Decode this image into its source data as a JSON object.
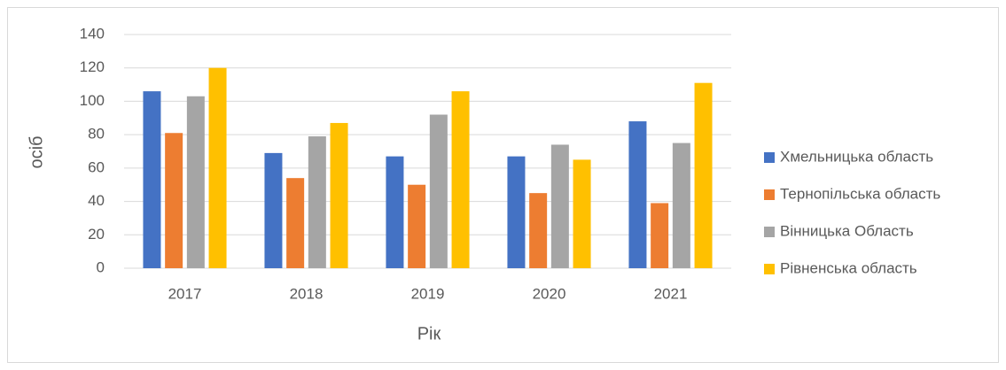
{
  "chart_data": {
    "type": "bar",
    "xlabel": "Рік",
    "ylabel": "осіб",
    "categories": [
      "2017",
      "2018",
      "2019",
      "2020",
      "2021"
    ],
    "series": [
      {
        "name": "Хмельницька область",
        "color": "#4472c4",
        "values": [
          106,
          69,
          67,
          67,
          88
        ]
      },
      {
        "name": "Тернопільська область",
        "color": "#ed7d31",
        "values": [
          81,
          54,
          50,
          45,
          39
        ]
      },
      {
        "name": "Вінницька Область",
        "color": "#a5a5a5",
        "values": [
          103,
          79,
          92,
          74,
          75
        ]
      },
      {
        "name": "Рівненська область",
        "color": "#ffc000",
        "values": [
          120,
          87,
          106,
          65,
          111
        ]
      }
    ],
    "ylim": [
      0,
      140
    ],
    "yticks": [
      0,
      20,
      40,
      60,
      80,
      100,
      120,
      140
    ],
    "grid": true,
    "legend": "right"
  }
}
